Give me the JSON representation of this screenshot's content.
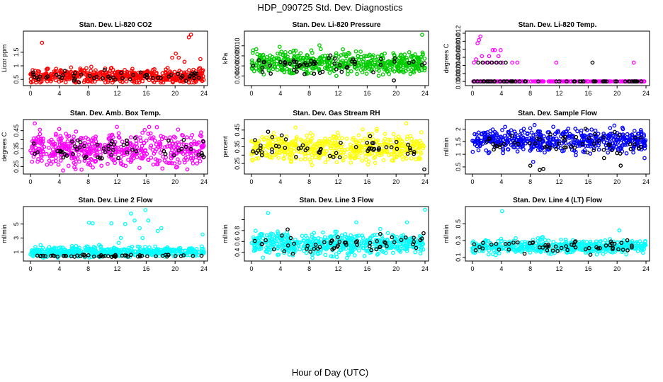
{
  "figure": {
    "title": "HDP_090725  Std. Dev. Diagnostics",
    "xlabel": "Hour of Day (UTC)"
  },
  "chart_data": [
    {
      "type": "scatter",
      "title": "Stan. Dev. Li-820 CO2",
      "ylabel": "Licor ppm",
      "color": "#ff0000",
      "xlim": [
        0,
        24
      ],
      "ylim": [
        0.35,
        2.2
      ],
      "xticks": [
        0,
        4,
        8,
        12,
        16,
        20,
        24
      ],
      "yticks": [
        0.5,
        1.0,
        1.5
      ],
      "ytick_labels": [
        "0.5",
        "1",
        "1.5"
      ],
      "main_mean": 0.62,
      "main_spread": 0.13,
      "black_mean": 0.6,
      "black_spread": 0.1,
      "outliers": [
        [
          1.6,
          1.85
        ],
        [
          19.6,
          1.3
        ],
        [
          20.1,
          1.45
        ],
        [
          20.5,
          1.3
        ],
        [
          21.3,
          1.15
        ],
        [
          21.9,
          2.05
        ],
        [
          22.2,
          2.15
        ],
        [
          23.5,
          1.25
        ]
      ],
      "black_outliers": []
    },
    {
      "type": "scatter",
      "title": "Stan. Dev. Li-820 Pressure",
      "ylabel": "kPa",
      "color": "#00cc00",
      "xlim": [
        0,
        24
      ],
      "ylim": [
        0.0025,
        0.0125
      ],
      "xticks": [
        0,
        4,
        8,
        12,
        16,
        20,
        24
      ],
      "yticks": [
        0.004,
        0.006,
        0.008,
        0.01
      ],
      "ytick_labels": [
        "0.004",
        "0.006",
        "0.008",
        "0.010"
      ],
      "main_mean": 0.0066,
      "main_spread": 0.0011,
      "black_mean": 0.0062,
      "black_spread": 0.0009,
      "outliers": [
        [
          3.9,
          0.0098
        ],
        [
          9.4,
          0.0101
        ],
        [
          23.6,
          0.0122
        ]
      ],
      "black_outliers": [
        [
          19.7,
          0.0031
        ]
      ]
    },
    {
      "type": "scatter",
      "title": "Stan. Dev. Li-820 Temp.",
      "ylabel": "degrees C",
      "color": "#ff00ff",
      "xlim": [
        0,
        24
      ],
      "ylim": [
        -0.0005,
        0.012
      ],
      "xticks": [
        0,
        4,
        8,
        12,
        16,
        20,
        24
      ],
      "yticks": [
        0.0,
        0.002,
        0.004,
        0.006,
        0.008,
        0.01,
        0.012
      ],
      "ytick_labels": [
        "0.000",
        "0.002",
        "0.004",
        "0.006",
        "0.008",
        "0.010",
        "0.012"
      ],
      "main_mean": 0.0,
      "main_spread": 0.0,
      "black_mean": 0.0,
      "black_spread": 0.0,
      "outliers": [
        [
          0.2,
          0.0047
        ],
        [
          0.5,
          0.0055
        ],
        [
          0.7,
          0.0095
        ],
        [
          0.9,
          0.0103
        ],
        [
          1.1,
          0.0112
        ],
        [
          1.3,
          0.0063
        ],
        [
          1.5,
          0.0047
        ],
        [
          2.0,
          0.0047
        ],
        [
          2.3,
          0.0063
        ],
        [
          2.6,
          0.0047
        ],
        [
          2.8,
          0.0078
        ],
        [
          3.1,
          0.0078
        ],
        [
          3.4,
          0.0047
        ],
        [
          3.6,
          0.0063
        ],
        [
          3.9,
          0.0078
        ],
        [
          4.2,
          0.0047
        ],
        [
          5.5,
          0.0047
        ],
        [
          6.2,
          0.0047
        ],
        [
          11.6,
          0.0047
        ],
        [
          22.3,
          0.0047
        ]
      ],
      "black_outliers": [
        [
          0.8,
          0.0047
        ],
        [
          1.4,
          0.0047
        ],
        [
          2.1,
          0.0047
        ],
        [
          2.7,
          0.0047
        ],
        [
          3.3,
          0.0047
        ],
        [
          3.9,
          0.0047
        ],
        [
          4.6,
          0.0047
        ],
        [
          16.6,
          0.0047
        ]
      ]
    },
    {
      "type": "scatter",
      "title": "Stan. Dev. Amb. Box Temp.",
      "ylabel": "degrees C",
      "color": "#ff00ff",
      "xlim": [
        0,
        24
      ],
      "ylim": [
        0.22,
        0.5
      ],
      "xticks": [
        0,
        4,
        8,
        12,
        16,
        20,
        24
      ],
      "yticks": [
        0.25,
        0.3,
        0.35,
        0.4,
        0.45
      ],
      "ytick_labels": [
        "0.25",
        "",
        "0.35",
        "",
        "0.45"
      ],
      "main_mean": 0.345,
      "main_spread": 0.045,
      "black_mean": 0.34,
      "black_spread": 0.035,
      "outliers": [
        [
          0.6,
          0.49
        ],
        [
          1.3,
          0.455
        ],
        [
          23.6,
          0.44
        ]
      ],
      "black_outliers": [
        [
          23.9,
          0.39
        ]
      ]
    },
    {
      "type": "scatter",
      "title": "Stan. Dev. Gas Stream RH",
      "ylabel": "percent",
      "color": "#ffff00",
      "xlim": [
        0,
        24
      ],
      "ylim": [
        0.2,
        0.5
      ],
      "xticks": [
        0,
        4,
        8,
        12,
        16,
        20,
        24
      ],
      "yticks": [
        0.25,
        0.3,
        0.35,
        0.4,
        0.45
      ],
      "ytick_labels": [
        "0.25",
        "",
        "0.35",
        "",
        "0.45"
      ],
      "main_mean": 0.345,
      "main_spread": 0.04,
      "black_mean": 0.34,
      "black_spread": 0.035,
      "outliers": [
        [
          6.1,
          0.465
        ],
        [
          21.4,
          0.49
        ]
      ],
      "black_outliers": [
        [
          2.3,
          0.44
        ],
        [
          23.9,
          0.215
        ]
      ]
    },
    {
      "type": "scatter",
      "title": "Stan. Dev. Sample Flow",
      "ylabel": "ml/min",
      "color": "#0000ff",
      "xlim": [
        0,
        24
      ],
      "ylim": [
        0.3,
        2.3
      ],
      "xticks": [
        0,
        4,
        8,
        12,
        16,
        20,
        24
      ],
      "yticks": [
        0.5,
        1.0,
        1.5,
        2.0
      ],
      "ytick_labels": [
        "0.5",
        "1",
        "1.5",
        "2"
      ],
      "main_mean": 1.55,
      "main_spread": 0.22,
      "black_mean": 1.45,
      "black_spread": 0.25,
      "outliers": [
        [
          23.8,
          0.85
        ],
        [
          8.4,
          0.7
        ]
      ],
      "black_outliers": [
        [
          8.0,
          0.55
        ],
        [
          9.3,
          0.38
        ],
        [
          9.8,
          0.42
        ],
        [
          20.5,
          0.55
        ],
        [
          18.2,
          0.85
        ]
      ]
    },
    {
      "type": "scatter",
      "title": "Stan. Dev. Line 2 Flow",
      "ylabel": "ml/min",
      "color": "#00ffff",
      "xlim": [
        0,
        24
      ],
      "ylim": [
        0,
        7.2
      ],
      "xticks": [
        0,
        4,
        8,
        12,
        16,
        20,
        24
      ],
      "yticks": [
        1,
        3,
        5
      ],
      "ytick_labels": [
        "1",
        "3",
        "5"
      ],
      "main_mean": 1.0,
      "main_spread": 0.35,
      "black_mean": 0.45,
      "black_spread": 0.08,
      "outliers": [
        [
          8.1,
          5.2
        ],
        [
          8.6,
          5.1
        ],
        [
          11.2,
          5.1
        ],
        [
          12.5,
          3.0
        ],
        [
          13.1,
          5.0
        ],
        [
          13.9,
          6.5
        ],
        [
          14.4,
          5.5
        ],
        [
          15.1,
          4.4
        ],
        [
          15.5,
          3.0
        ],
        [
          15.9,
          7.0
        ],
        [
          16.3,
          5.5
        ],
        [
          17.6,
          4.0
        ],
        [
          18.1,
          4.4
        ],
        [
          23.8,
          3.5
        ],
        [
          12.2,
          2.3
        ],
        [
          9.5,
          2.0
        ]
      ],
      "black_outliers": []
    },
    {
      "type": "scatter",
      "title": "Stan. Dev. Line 3 Flow",
      "ylabel": "ml/min",
      "color": "#00ffff",
      "xlim": [
        0,
        24
      ],
      "ylim": [
        0.28,
        1.2
      ],
      "xticks": [
        0,
        4,
        8,
        12,
        16,
        20,
        24
      ],
      "yticks": [
        0.4,
        0.6,
        0.8,
        1.0
      ],
      "ytick_labels": [
        "0.4",
        "0.6",
        "0.8",
        ""
      ],
      "main_mean": 0.55,
      "main_spread": 0.1,
      "black_mean": 0.55,
      "black_spread": 0.1,
      "outliers": [
        [
          2.3,
          1.12
        ],
        [
          24.0,
          1.18
        ],
        [
          14.5,
          0.95
        ],
        [
          21.5,
          0.95
        ]
      ],
      "black_outliers": [
        [
          5.0,
          0.82
        ],
        [
          23.8,
          0.75
        ]
      ]
    },
    {
      "type": "scatter",
      "title": "Stan. Dev. Line 4 (LT) Flow",
      "ylabel": "ml/min",
      "color": "#00ffff",
      "xlim": [
        0,
        24
      ],
      "ylim": [
        0.08,
        0.68
      ],
      "xticks": [
        0,
        4,
        8,
        12,
        16,
        20,
        24
      ],
      "yticks": [
        0.1,
        0.3,
        0.5
      ],
      "ytick_labels": [
        "0.1",
        "0.3",
        "0.5"
      ],
      "main_mean": 0.23,
      "main_spread": 0.04,
      "black_mean": 0.22,
      "black_spread": 0.04,
      "outliers": [
        [
          4.1,
          0.65
        ],
        [
          20.3,
          0.42
        ]
      ],
      "black_outliers": []
    }
  ]
}
